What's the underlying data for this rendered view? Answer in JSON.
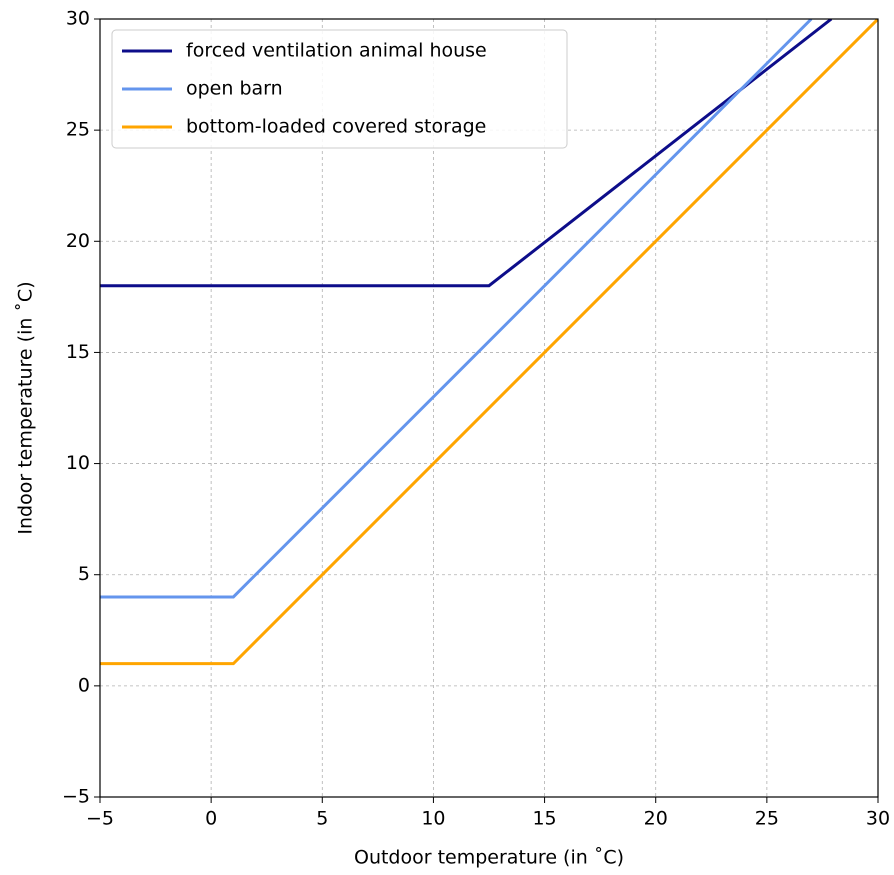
{
  "chart_data": {
    "type": "line",
    "xlabel": "Outdoor temperature (in ˚C)",
    "ylabel": "Indoor temperature (in ˚C)",
    "xlim": [
      -5,
      30
    ],
    "ylim": [
      -5,
      30
    ],
    "xticks": [
      {
        "value": -5,
        "label": "−5"
      },
      0,
      5,
      10,
      15,
      20,
      25,
      30
    ],
    "yticks": [
      {
        "value": -5,
        "label": "−5"
      },
      0,
      5,
      10,
      15,
      20,
      25,
      30
    ],
    "grid": true,
    "legend": "upper-left",
    "series": [
      {
        "name": "forced ventilation animal house",
        "color": "#0d0d8a",
        "x": [
          -5,
          12.5,
          27.9
        ],
        "values": [
          18,
          18,
          30
        ]
      },
      {
        "name": "open barn",
        "color": "#6495ed",
        "x": [
          -5,
          1,
          27
        ],
        "values": [
          4,
          4,
          30
        ]
      },
      {
        "name": "bottom-loaded covered storage",
        "color": "#ffa500",
        "x": [
          -5,
          1,
          30
        ],
        "values": [
          1,
          1,
          30
        ]
      }
    ]
  }
}
